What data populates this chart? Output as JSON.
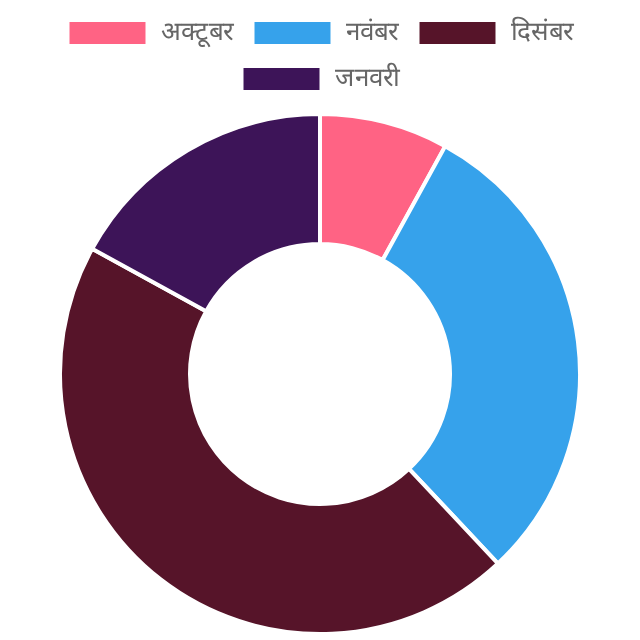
{
  "chart_data": {
    "type": "donut",
    "categories": [
      "अक्टूबर",
      "नवंबर",
      "दिसंबर",
      "जनवरी"
    ],
    "values": [
      8,
      30,
      45,
      17
    ],
    "colors": [
      "#ff6384",
      "#36a2eb",
      "#561429",
      "#3d1458"
    ],
    "legend": "top"
  }
}
